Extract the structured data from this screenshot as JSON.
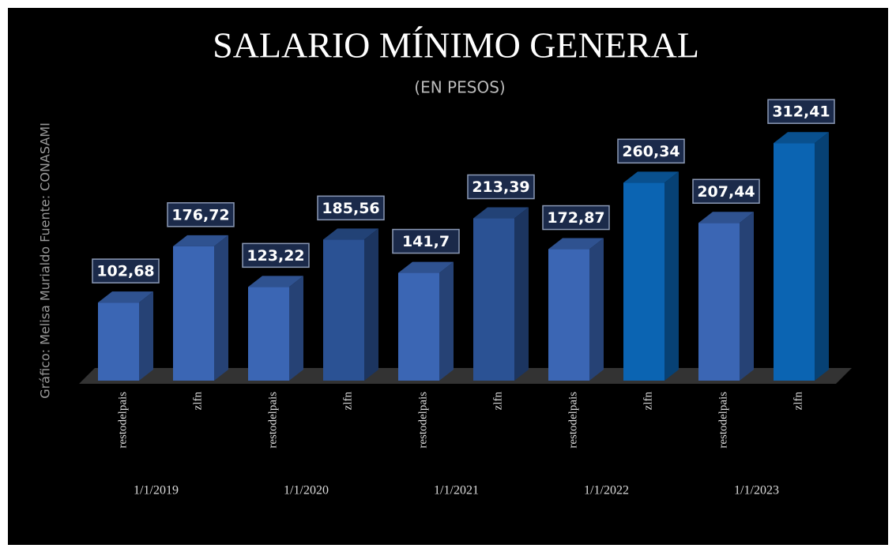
{
  "chart_data": {
    "type": "bar3d",
    "title": "SALARIO MÍNIMO GENERAL",
    "subtitle": "(EN PESOS)",
    "side_note": "Gráfico: Melisa Murialdo Fuente: CONASAMI",
    "categories": [
      "restodelpais",
      "zlfn",
      "restodelpais",
      "zlfn",
      "restodelpais",
      "zlfn",
      "restodelpais",
      "zlfn",
      "restodelpais",
      "zlfn"
    ],
    "groups": [
      "1/1/2019",
      "1/1/2020",
      "1/1/2021",
      "1/1/2022",
      "1/1/2023"
    ],
    "values": [
      102.68,
      176.72,
      123.22,
      185.56,
      141.7,
      213.39,
      172.87,
      260.34,
      207.44,
      312.41
    ],
    "value_labels": [
      "102,68",
      "176,72",
      "123,22",
      "185,56",
      "141,7",
      "213,39",
      "172,87",
      "260,34",
      "207,44",
      "312,41"
    ],
    "colors": [
      "#3b66b4",
      "#3b66b4",
      "#3b66b4",
      "#2b5294",
      "#3b66b4",
      "#2b5294",
      "#3b66b4",
      "#0b64b2",
      "#3b66b4",
      "#0b64b2"
    ],
    "ylim": [
      0,
      350
    ]
  }
}
